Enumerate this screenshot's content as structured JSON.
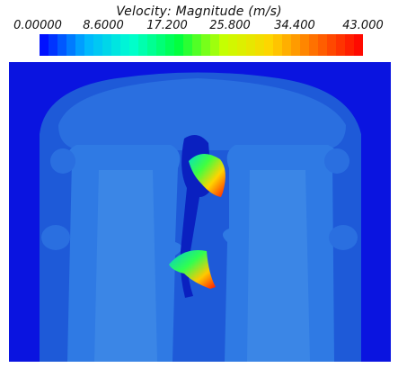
{
  "legend": {
    "title": "Velocity: Magnitude (m/s)",
    "ticks": [
      "0.00000",
      "8.6000",
      "17.200",
      "25.800",
      "34.400",
      "43.000"
    ],
    "min": 0.0,
    "max": 43.0,
    "segments": 36
  },
  "colors": {
    "background_flow": "#0a14e0",
    "low_speed_region": "#1e5ad8",
    "jet_core": "#3b86e6",
    "stagnation": "#001aa8",
    "colormap": [
      "#0000ff",
      "#00b4ff",
      "#00ffd0",
      "#00ff40",
      "#c8ff00",
      "#ffd400",
      "#ff6a00",
      "#ff0000"
    ]
  }
}
